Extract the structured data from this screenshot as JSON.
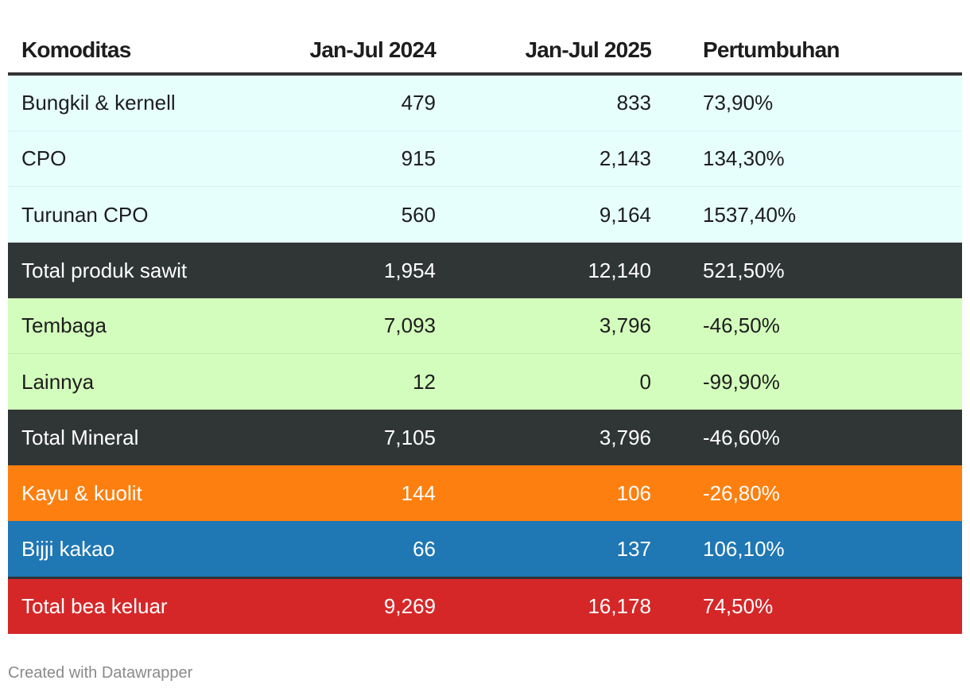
{
  "chart_data": {
    "type": "table",
    "columns": [
      "Komoditas",
      "Jan-Jul 2024",
      "Jan-Jul 2025",
      "Pertumbuhan"
    ],
    "rows": [
      {
        "komoditas": "Bungkil & kernell",
        "y2024": "479",
        "y2025": "833",
        "growth": "73,90%",
        "bg": "#e6fffd",
        "fg": "#1d1d1d"
      },
      {
        "komoditas": "CPO",
        "y2024": "915",
        "y2025": "2,143",
        "growth": "134,30%",
        "bg": "#e6fffd",
        "fg": "#1d1d1d"
      },
      {
        "komoditas": "Turunan CPO",
        "y2024": "560",
        "y2025": "9,164",
        "growth": "1537,40%",
        "bg": "#e6fffd",
        "fg": "#1d1d1d"
      },
      {
        "komoditas": "Total produk sawit",
        "y2024": "1,954",
        "y2025": "12,140",
        "growth": "521,50%",
        "bg": "#303536",
        "fg": "#ffffff"
      },
      {
        "komoditas": "Tembaga",
        "y2024": "7,093",
        "y2025": "3,796",
        "growth": "-46,50%",
        "bg": "#d3fdbc",
        "fg": "#1d1d1d"
      },
      {
        "komoditas": "Lainnya",
        "y2024": "12",
        "y2025": "0",
        "growth": "-99,90%",
        "bg": "#d3fdbc",
        "fg": "#1d1d1d"
      },
      {
        "komoditas": "Total Mineral",
        "y2024": "7,105",
        "y2025": "3,796",
        "growth": "-46,60%",
        "bg": "#303536",
        "fg": "#ffffff"
      },
      {
        "komoditas": "Kayu & kuolit",
        "y2024": "144",
        "y2025": "106",
        "growth": "-26,80%",
        "bg": "#fd7f0f",
        "fg": "#ffffff"
      },
      {
        "komoditas": "Bijji kakao",
        "y2024": "66",
        "y2025": "137",
        "growth": "106,10%",
        "bg": "#1f77b4",
        "fg": "#ffffff"
      },
      {
        "komoditas": "Total bea keluar",
        "y2024": "9,269",
        "y2025": "16,178",
        "growth": "74,50%",
        "bg": "#d62728",
        "fg": "#ffffff"
      }
    ]
  },
  "footer": "Created with Datawrapper"
}
